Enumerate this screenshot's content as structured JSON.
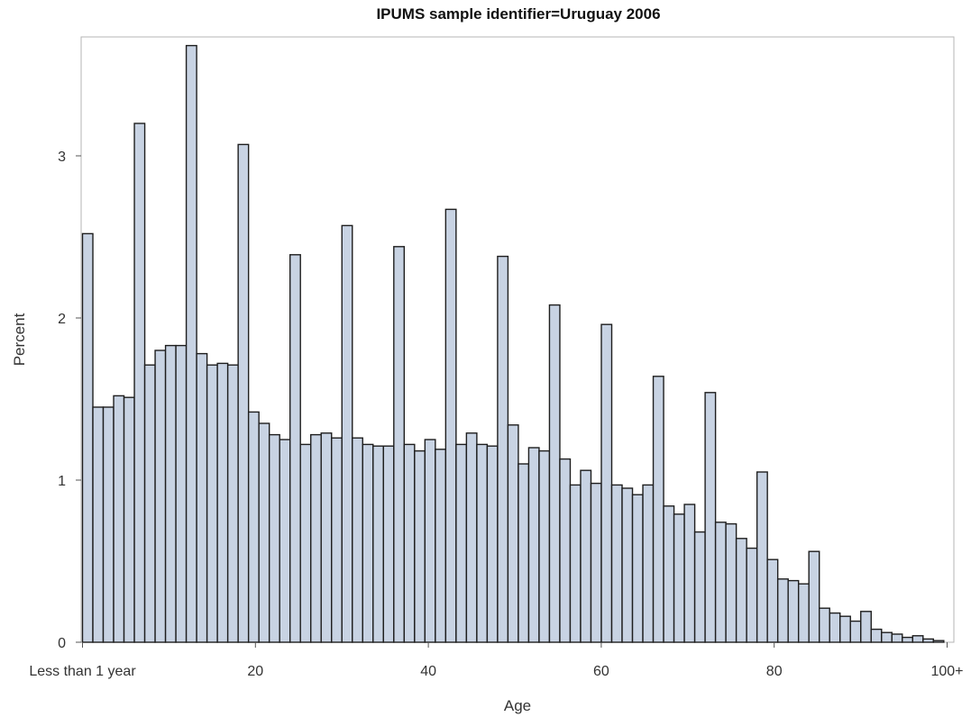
{
  "chart_data": {
    "type": "bar",
    "title": "IPUMS sample identifier=Uruguay 2006",
    "xlabel": "Age",
    "ylabel": "Percent",
    "ylim": [
      0,
      3.73
    ],
    "xlim": [
      0,
      100
    ],
    "x_tick_values": [
      0,
      20,
      40,
      60,
      80,
      100
    ],
    "x_tick_labels": [
      "Less than 1 year",
      "20",
      "40",
      "60",
      "80",
      "100+"
    ],
    "y_tick_values": [
      0,
      1,
      2,
      3
    ],
    "y_tick_labels": [
      "0",
      "1",
      "2",
      "3"
    ],
    "grid": false,
    "bar_fill": "#c8d3e3",
    "bar_stroke": "#1e1e1e",
    "values": [
      2.52,
      1.45,
      1.45,
      1.52,
      1.51,
      3.2,
      1.71,
      1.8,
      1.83,
      1.83,
      3.68,
      1.78,
      1.71,
      1.72,
      1.71,
      3.07,
      1.42,
      1.35,
      1.28,
      1.25,
      2.39,
      1.22,
      1.28,
      1.29,
      1.26,
      2.57,
      1.26,
      1.22,
      1.21,
      1.21,
      2.44,
      1.22,
      1.18,
      1.25,
      1.19,
      2.67,
      1.22,
      1.29,
      1.22,
      1.21,
      2.38,
      1.34,
      1.1,
      1.2,
      1.18,
      2.08,
      1.13,
      0.97,
      1.06,
      0.98,
      1.96,
      0.97,
      0.95,
      0.91,
      0.97,
      1.64,
      0.84,
      0.79,
      0.85,
      0.68,
      1.54,
      0.74,
      0.73,
      0.64,
      0.58,
      1.05,
      0.51,
      0.39,
      0.38,
      0.36,
      0.56,
      0.21,
      0.18,
      0.16,
      0.13,
      0.19,
      0.08,
      0.06,
      0.05,
      0.03,
      0.04,
      0.02,
      0.01
    ]
  }
}
